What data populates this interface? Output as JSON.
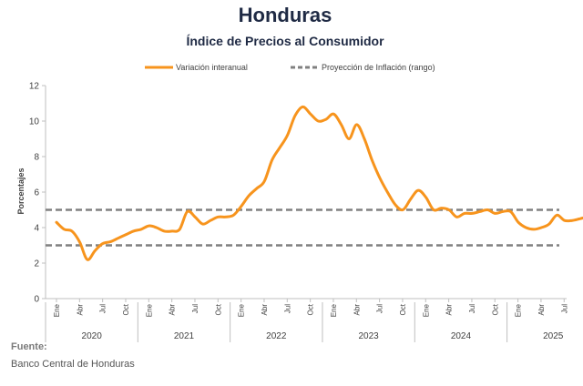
{
  "chart_data": {
    "type": "line",
    "title": "Honduras",
    "subtitle": "Índice de Precios al Consumidor",
    "ylabel": "Porcentajes",
    "ylim": [
      0,
      12
    ],
    "yticks": [
      0,
      2,
      4,
      6,
      8,
      10,
      12
    ],
    "months": [
      "Ene",
      "Abr",
      "Jul",
      "Oct",
      "Ene",
      "Abr",
      "Jul",
      "Oct",
      "Ene",
      "Abr",
      "Jul",
      "Oct",
      "Ene",
      "Abr",
      "Jul",
      "Oct",
      "Ene",
      "Abr",
      "Jul",
      "Oct",
      "Ene",
      "Abr",
      "Jul",
      "Oct",
      "Ene",
      "Abr",
      "Jul"
    ],
    "years": [
      "2020",
      "2021",
      "2022",
      "2023",
      "2024",
      "2025"
    ],
    "grid": false,
    "legend_position": "top-center",
    "series": [
      {
        "name": "Variación interanual",
        "color": "#f7941d",
        "style": "solid",
        "x_start": "2020-01",
        "values": [
          4.3,
          3.9,
          3.8,
          3.2,
          2.2,
          2.7,
          3.1,
          3.2,
          3.4,
          3.6,
          3.8,
          3.9,
          4.1,
          4.0,
          3.8,
          3.8,
          3.9,
          4.9,
          4.6,
          4.2,
          4.4,
          4.6,
          4.6,
          4.7,
          5.2,
          5.8,
          6.2,
          6.6,
          7.8,
          8.5,
          9.2,
          10.3,
          10.8,
          10.4,
          10.0,
          10.1,
          10.4,
          9.8,
          9.0,
          9.8,
          9.0,
          7.8,
          6.8,
          6.0,
          5.3,
          5.0,
          5.6,
          6.1,
          5.7,
          5.0,
          5.1,
          5.0,
          4.6,
          4.8,
          4.8,
          4.9,
          5.0,
          4.8,
          4.9,
          4.9,
          4.3,
          4.0,
          3.9,
          4.0,
          4.2,
          4.7,
          4.4,
          4.4,
          4.5,
          4.6
        ]
      },
      {
        "name": "Proyección de Inflación (rango)",
        "color": "#808080",
        "style": "dashed",
        "band": [
          3,
          5
        ]
      }
    ]
  },
  "footer": {
    "label": "Fuente:",
    "source": "Banco Central de Honduras"
  }
}
